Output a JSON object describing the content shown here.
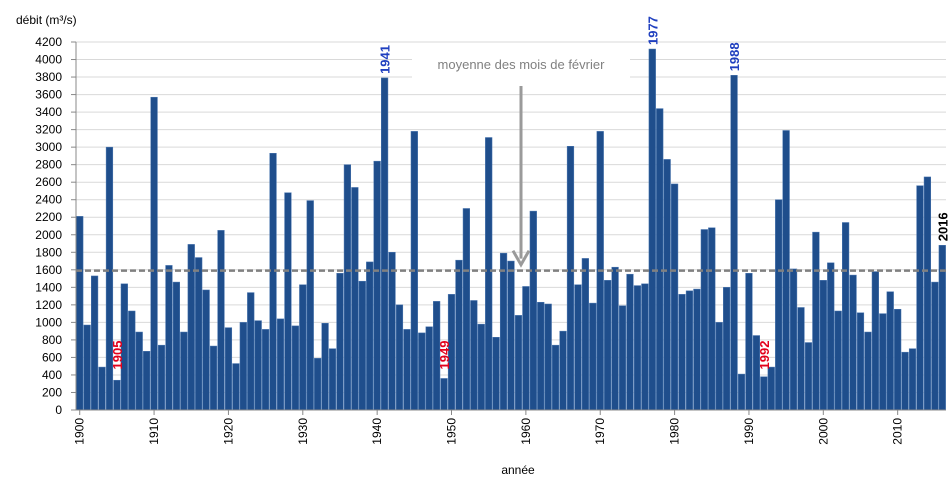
{
  "chart_data": {
    "type": "bar",
    "y_label": "débit (m³/s)",
    "x_label": "année",
    "x": [
      1900,
      1901,
      1902,
      1903,
      1904,
      1905,
      1906,
      1907,
      1908,
      1909,
      1910,
      1911,
      1912,
      1913,
      1914,
      1915,
      1916,
      1917,
      1918,
      1919,
      1920,
      1921,
      1922,
      1923,
      1924,
      1925,
      1926,
      1927,
      1928,
      1929,
      1930,
      1931,
      1932,
      1933,
      1934,
      1935,
      1936,
      1937,
      1938,
      1939,
      1940,
      1941,
      1942,
      1943,
      1944,
      1945,
      1946,
      1947,
      1948,
      1949,
      1950,
      1951,
      1952,
      1953,
      1954,
      1955,
      1956,
      1957,
      1958,
      1959,
      1960,
      1961,
      1962,
      1963,
      1964,
      1965,
      1966,
      1967,
      1968,
      1969,
      1970,
      1971,
      1972,
      1973,
      1974,
      1975,
      1976,
      1977,
      1978,
      1979,
      1980,
      1981,
      1982,
      1983,
      1984,
      1985,
      1986,
      1987,
      1988,
      1989,
      1990,
      1991,
      1992,
      1993,
      1994,
      1995,
      1996,
      1997,
      1998,
      1999,
      2000,
      2001,
      2002,
      2003,
      2004,
      2005,
      2006,
      2007,
      2008,
      2009,
      2010,
      2011,
      2012,
      2013,
      2014,
      2015,
      2016
    ],
    "values": [
      2210,
      970,
      1530,
      490,
      3000,
      340,
      1440,
      1130,
      890,
      670,
      3570,
      740,
      1650,
      1460,
      890,
      1890,
      1740,
      1370,
      730,
      2050,
      940,
      530,
      1000,
      1340,
      1020,
      920,
      2930,
      1040,
      2480,
      960,
      1430,
      2390,
      590,
      990,
      700,
      1560,
      2800,
      2540,
      1470,
      1690,
      2840,
      3790,
      1800,
      1200,
      920,
      3180,
      880,
      950,
      1240,
      360,
      1320,
      1710,
      2300,
      1250,
      980,
      3110,
      830,
      1790,
      1700,
      1080,
      1410,
      2270,
      1230,
      1210,
      740,
      900,
      3010,
      1430,
      1730,
      1220,
      3180,
      1480,
      1630,
      1190,
      1550,
      1420,
      1440,
      4120,
      3440,
      2860,
      2580,
      1320,
      1360,
      1380,
      2060,
      2080,
      1000,
      1400,
      3820,
      410,
      1560,
      850,
      380,
      490,
      2400,
      3190,
      1610,
      1170,
      770,
      2030,
      1480,
      1680,
      1130,
      2140,
      1540,
      1110,
      890,
      1580,
      1100,
      1350,
      1150,
      660,
      700,
      2560,
      2660,
      1460,
      1880
    ],
    "color": "#1f4e8c",
    "xlim": [
      1899.5,
      2016.5
    ],
    "xticks": [
      1900,
      1910,
      1920,
      1930,
      1940,
      1950,
      1960,
      1970,
      1980,
      1990,
      2000,
      2010
    ],
    "ylim": [
      0,
      4200
    ],
    "yticks": [
      0,
      200,
      400,
      600,
      800,
      1000,
      1200,
      1400,
      1600,
      1800,
      2000,
      2200,
      2400,
      2600,
      2800,
      3000,
      3200,
      3400,
      3600,
      3800,
      4000,
      4200
    ],
    "grid": true,
    "mean_line": {
      "value": 1590,
      "label": "moyenne des mois de février",
      "color": "#808080"
    },
    "annotations": [
      {
        "text": "1905",
        "x": 1905,
        "color": "#e3001b",
        "placement": "inside"
      },
      {
        "text": "1941",
        "x": 1941,
        "color": "#1f3fbf",
        "placement": "above"
      },
      {
        "text": "1949",
        "x": 1949,
        "color": "#e3001b",
        "placement": "inside"
      },
      {
        "text": "1977",
        "x": 1977,
        "color": "#1f3fbf",
        "placement": "above"
      },
      {
        "text": "1988",
        "x": 1988,
        "color": "#1f3fbf",
        "placement": "above"
      },
      {
        "text": "1992",
        "x": 1992,
        "color": "#e3001b",
        "placement": "inside"
      },
      {
        "text": "2016",
        "x": 2016,
        "color": "#000000",
        "placement": "above"
      }
    ]
  }
}
